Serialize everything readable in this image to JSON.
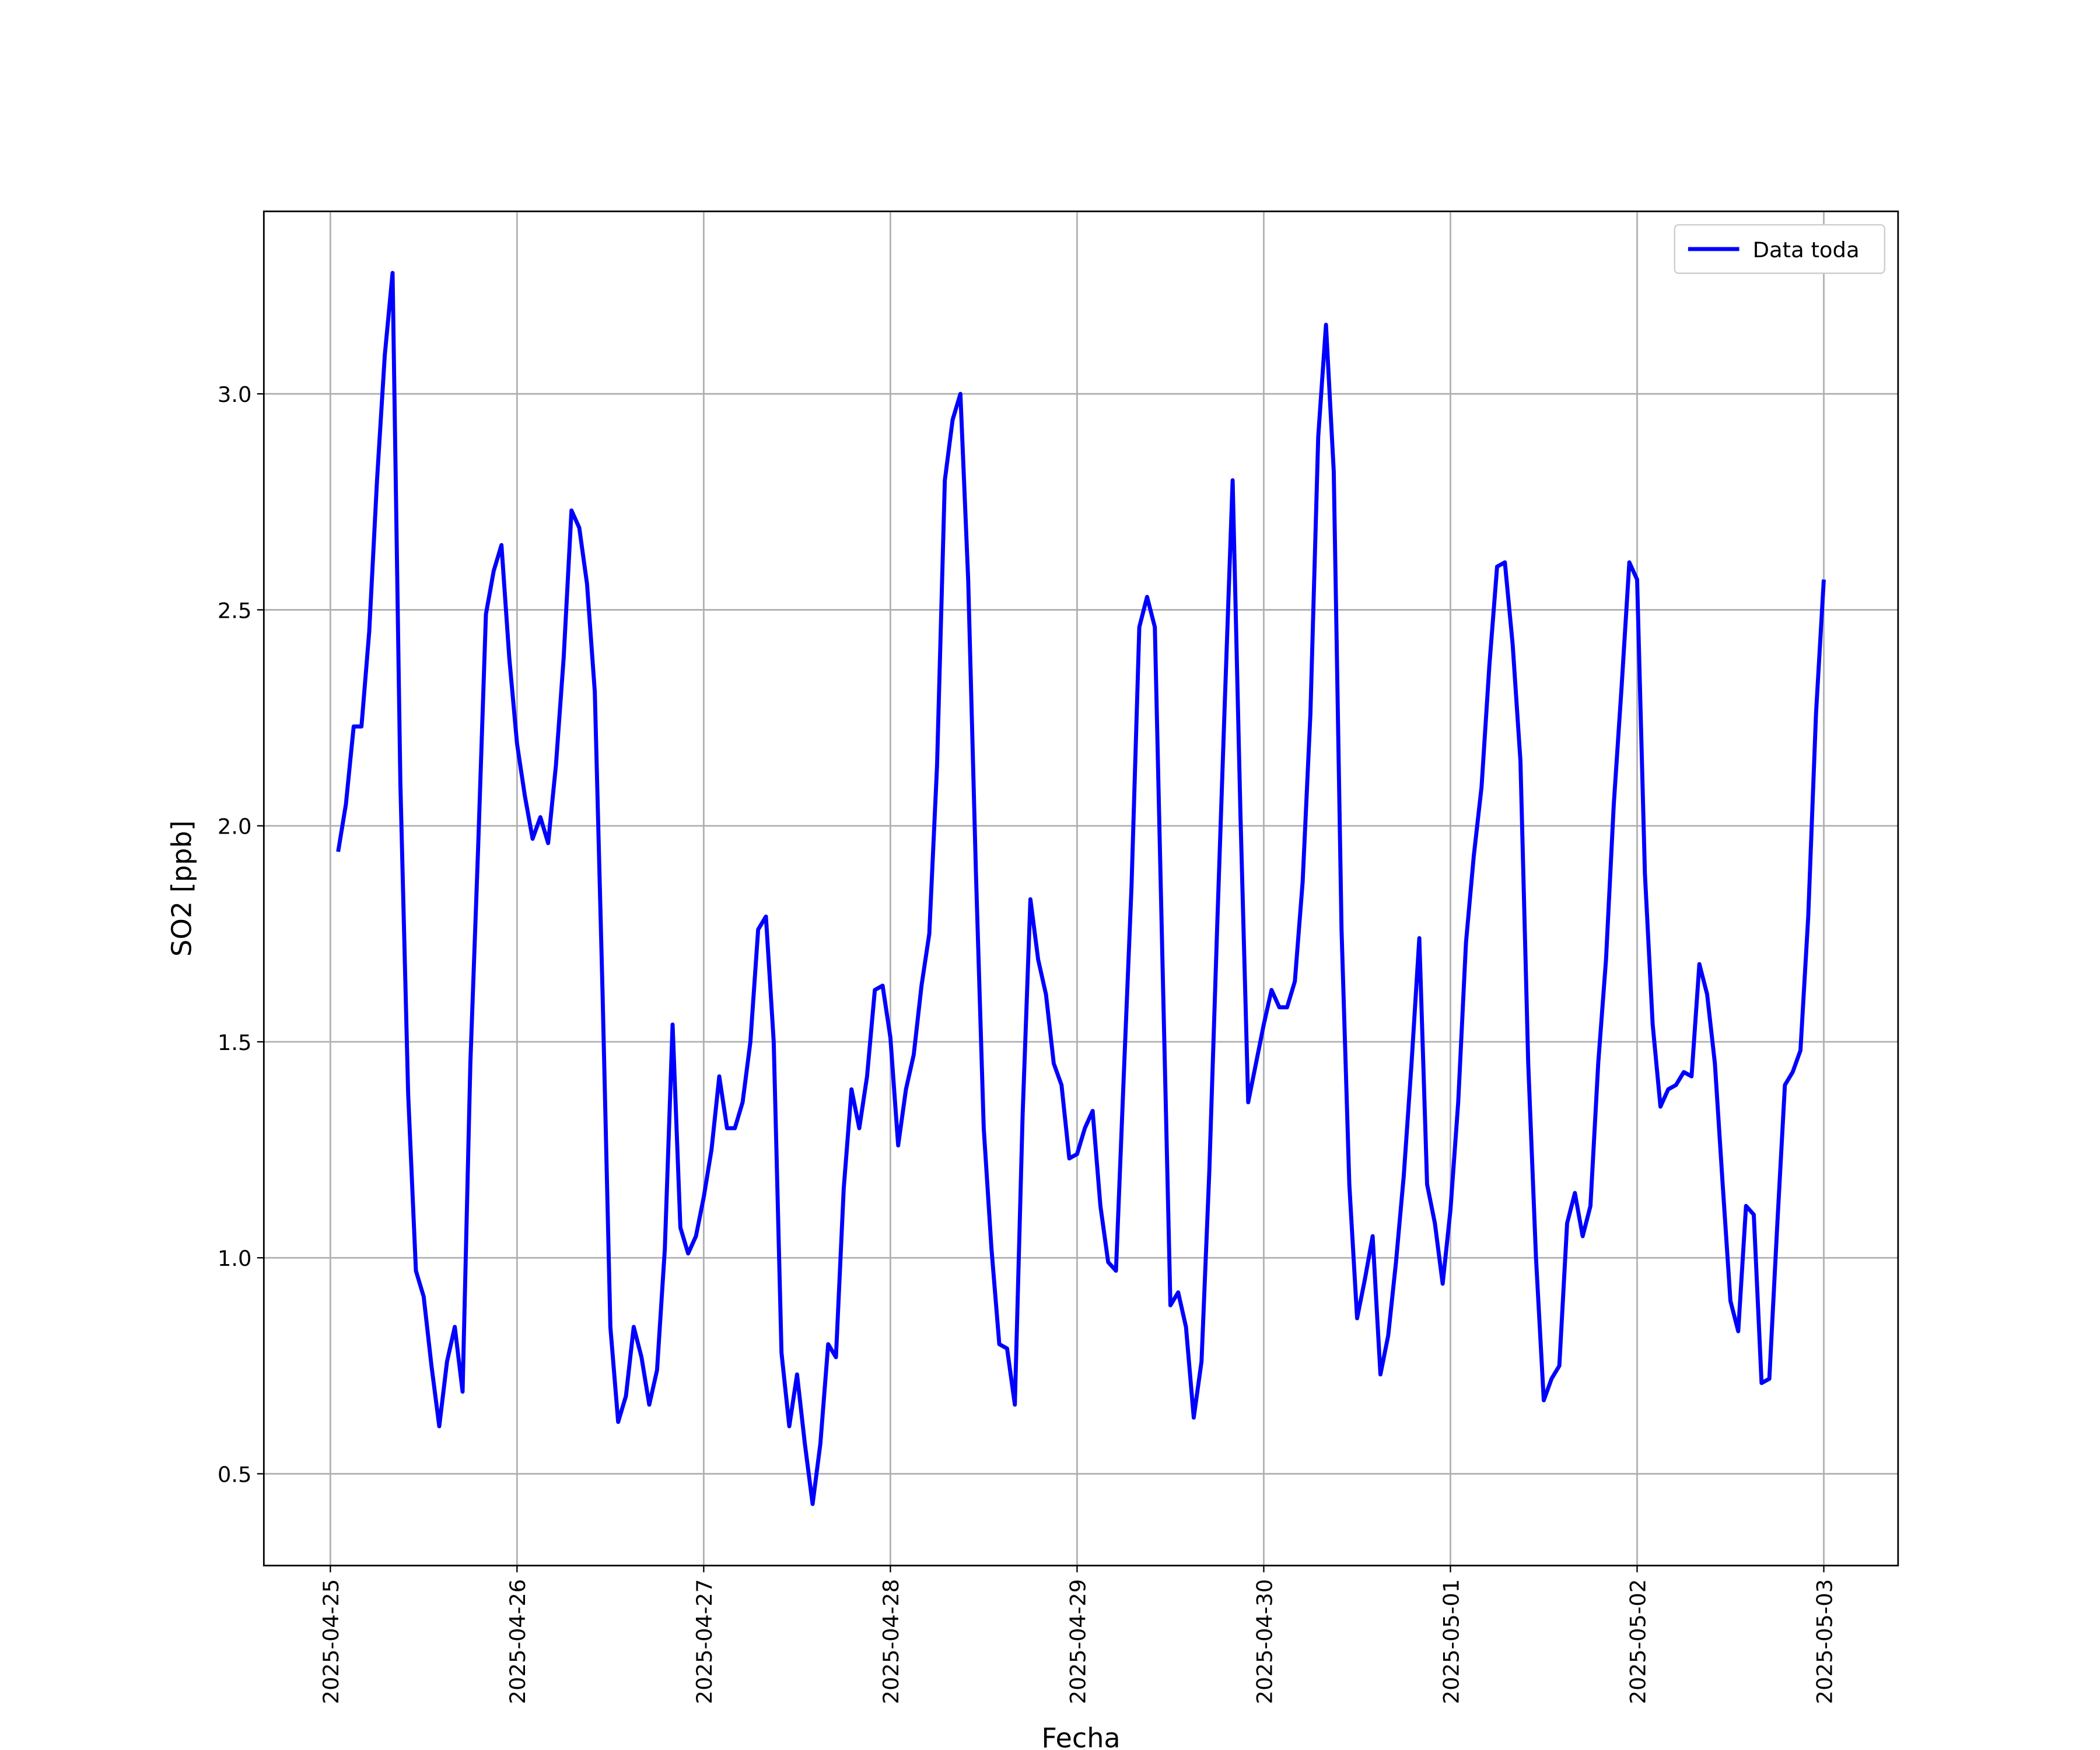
{
  "chart_data": {
    "type": "line",
    "xlabel": "Fecha",
    "ylabel": "SO2 [ppb]",
    "x": [
      "2025-04-25 01:00",
      "2025-04-25 02:00",
      "2025-04-25 03:00",
      "2025-04-25 04:00",
      "2025-04-25 05:00",
      "2025-04-25 06:00",
      "2025-04-25 07:00",
      "2025-04-25 08:00",
      "2025-04-25 09:00",
      "2025-04-25 10:00",
      "2025-04-25 11:00",
      "2025-04-25 12:00",
      "2025-04-25 13:00",
      "2025-04-25 14:00",
      "2025-04-25 15:00",
      "2025-04-25 16:00",
      "2025-04-25 17:00",
      "2025-04-25 18:00",
      "2025-04-25 19:00",
      "2025-04-25 20:00",
      "2025-04-25 21:00",
      "2025-04-25 22:00",
      "2025-04-25 23:00",
      "2025-04-26 00:00",
      "2025-04-26 01:00",
      "2025-04-26 02:00",
      "2025-04-26 03:00",
      "2025-04-26 04:00",
      "2025-04-26 05:00",
      "2025-04-26 06:00",
      "2025-04-26 07:00",
      "2025-04-26 08:00",
      "2025-04-26 09:00",
      "2025-04-26 10:00",
      "2025-04-26 11:00",
      "2025-04-26 12:00",
      "2025-04-26 13:00",
      "2025-04-26 14:00",
      "2025-04-26 15:00",
      "2025-04-26 16:00",
      "2025-04-26 17:00",
      "2025-04-26 18:00",
      "2025-04-26 19:00",
      "2025-04-26 20:00",
      "2025-04-26 21:00",
      "2025-04-26 22:00",
      "2025-04-26 23:00",
      "2025-04-27 00:00",
      "2025-04-27 01:00",
      "2025-04-27 02:00",
      "2025-04-27 03:00",
      "2025-04-27 04:00",
      "2025-04-27 05:00",
      "2025-04-27 06:00",
      "2025-04-27 07:00",
      "2025-04-27 08:00",
      "2025-04-27 09:00",
      "2025-04-27 10:00",
      "2025-04-27 11:00",
      "2025-04-27 12:00",
      "2025-04-27 13:00",
      "2025-04-27 14:00",
      "2025-04-27 15:00",
      "2025-04-27 16:00",
      "2025-04-27 17:00",
      "2025-04-27 18:00",
      "2025-04-27 19:00",
      "2025-04-27 20:00",
      "2025-04-27 21:00",
      "2025-04-27 22:00",
      "2025-04-27 23:00",
      "2025-04-28 00:00",
      "2025-04-28 01:00",
      "2025-04-28 02:00",
      "2025-04-28 03:00",
      "2025-04-28 04:00",
      "2025-04-28 05:00",
      "2025-04-28 06:00",
      "2025-04-28 07:00",
      "2025-04-28 08:00",
      "2025-04-28 09:00",
      "2025-04-28 10:00",
      "2025-04-28 11:00",
      "2025-04-28 12:00",
      "2025-04-28 13:00",
      "2025-04-28 14:00",
      "2025-04-28 15:00",
      "2025-04-28 16:00",
      "2025-04-28 17:00",
      "2025-04-28 18:00",
      "2025-04-28 19:00",
      "2025-04-28 20:00",
      "2025-04-28 21:00",
      "2025-04-28 22:00",
      "2025-04-28 23:00",
      "2025-04-29 00:00",
      "2025-04-29 01:00",
      "2025-04-29 02:00",
      "2025-04-29 03:00",
      "2025-04-29 04:00",
      "2025-04-29 05:00",
      "2025-04-29 06:00",
      "2025-04-29 07:00",
      "2025-04-29 08:00",
      "2025-04-29 09:00",
      "2025-04-29 10:00",
      "2025-04-29 11:00",
      "2025-04-29 12:00",
      "2025-04-29 13:00",
      "2025-04-29 14:00",
      "2025-04-29 15:00",
      "2025-04-29 16:00",
      "2025-04-29 17:00",
      "2025-04-29 18:00",
      "2025-04-29 19:00",
      "2025-04-29 20:00",
      "2025-04-29 21:00",
      "2025-04-29 22:00",
      "2025-04-29 23:00",
      "2025-04-30 00:00",
      "2025-04-30 01:00",
      "2025-04-30 02:00",
      "2025-04-30 03:00",
      "2025-04-30 04:00",
      "2025-04-30 05:00",
      "2025-04-30 06:00",
      "2025-04-30 07:00",
      "2025-04-30 08:00",
      "2025-04-30 09:00",
      "2025-04-30 10:00",
      "2025-04-30 11:00",
      "2025-04-30 12:00",
      "2025-04-30 13:00",
      "2025-04-30 14:00",
      "2025-04-30 15:00",
      "2025-04-30 16:00",
      "2025-04-30 17:00",
      "2025-04-30 18:00",
      "2025-04-30 19:00",
      "2025-04-30 20:00",
      "2025-04-30 21:00",
      "2025-04-30 22:00",
      "2025-04-30 23:00",
      "2025-05-01 00:00",
      "2025-05-01 01:00",
      "2025-05-01 02:00",
      "2025-05-01 03:00",
      "2025-05-01 04:00",
      "2025-05-01 05:00",
      "2025-05-01 06:00",
      "2025-05-01 07:00",
      "2025-05-01 08:00",
      "2025-05-01 09:00",
      "2025-05-01 10:00",
      "2025-05-01 11:00",
      "2025-05-01 12:00",
      "2025-05-01 13:00",
      "2025-05-01 14:00",
      "2025-05-01 15:00",
      "2025-05-01 16:00",
      "2025-05-01 17:00",
      "2025-05-01 18:00",
      "2025-05-01 19:00",
      "2025-05-01 20:00",
      "2025-05-01 21:00",
      "2025-05-01 22:00",
      "2025-05-01 23:00",
      "2025-05-02 00:00",
      "2025-05-02 01:00",
      "2025-05-02 02:00",
      "2025-05-02 03:00",
      "2025-05-02 04:00",
      "2025-05-02 05:00",
      "2025-05-02 06:00",
      "2025-05-02 07:00",
      "2025-05-02 08:00",
      "2025-05-02 09:00",
      "2025-05-02 10:00",
      "2025-05-02 11:00",
      "2025-05-02 12:00",
      "2025-05-02 13:00",
      "2025-05-02 14:00",
      "2025-05-02 15:00",
      "2025-05-02 16:00",
      "2025-05-02 17:00",
      "2025-05-02 18:00",
      "2025-05-02 19:00",
      "2025-05-02 20:00",
      "2025-05-02 21:00",
      "2025-05-02 22:00",
      "2025-05-02 23:00",
      "2025-05-03 00:00"
    ],
    "series": [
      {
        "name": "Data toda",
        "color": "#0000ff",
        "values": [
          1.94,
          2.05,
          2.23,
          2.23,
          2.45,
          2.8,
          3.09,
          3.28,
          2.1,
          1.38,
          0.97,
          0.91,
          0.75,
          0.61,
          0.76,
          0.84,
          0.69,
          1.45,
          1.95,
          2.49,
          2.59,
          2.65,
          2.39,
          2.19,
          2.07,
          1.97,
          2.02,
          1.96,
          2.14,
          2.39,
          2.73,
          2.69,
          2.56,
          2.31,
          1.61,
          0.84,
          0.62,
          0.68,
          0.84,
          0.77,
          0.66,
          0.74,
          1.02,
          1.54,
          1.07,
          1.01,
          1.05,
          1.14,
          1.25,
          1.42,
          1.3,
          1.3,
          1.36,
          1.5,
          1.76,
          1.79,
          1.5,
          0.78,
          0.61,
          0.73,
          0.57,
          0.43,
          0.57,
          0.8,
          0.77,
          1.16,
          1.39,
          1.3,
          1.42,
          1.62,
          1.63,
          1.51,
          1.26,
          1.39,
          1.47,
          1.63,
          1.75,
          2.14,
          2.8,
          2.94,
          3.0,
          2.57,
          1.89,
          1.3,
          1.02,
          0.8,
          0.79,
          0.66,
          1.33,
          1.83,
          1.69,
          1.61,
          1.45,
          1.4,
          1.23,
          1.24,
          1.3,
          1.34,
          1.12,
          0.99,
          0.97,
          1.42,
          1.86,
          2.46,
          2.53,
          2.46,
          1.67,
          0.89,
          0.92,
          0.84,
          0.63,
          0.76,
          1.2,
          1.76,
          2.29,
          2.8,
          2.03,
          1.36,
          1.45,
          1.54,
          1.62,
          1.58,
          1.58,
          1.64,
          1.87,
          2.26,
          2.9,
          3.16,
          2.82,
          1.76,
          1.17,
          0.86,
          0.95,
          1.05,
          0.73,
          0.82,
          0.99,
          1.19,
          1.45,
          1.74,
          1.17,
          1.08,
          0.94,
          1.11,
          1.36,
          1.73,
          1.93,
          2.09,
          2.37,
          2.6,
          2.61,
          2.42,
          2.15,
          1.45,
          1.0,
          0.67,
          0.72,
          0.75,
          1.08,
          1.15,
          1.05,
          1.12,
          1.45,
          1.69,
          2.05,
          2.32,
          2.61,
          2.57,
          1.89,
          1.54,
          1.35,
          1.39,
          1.4,
          1.43,
          1.42,
          1.68,
          1.61,
          1.45,
          1.17,
          0.9,
          0.83,
          1.12,
          1.1,
          0.71,
          0.72,
          1.07,
          1.4,
          1.43,
          1.48,
          1.79,
          2.26,
          2.57
        ]
      }
    ],
    "xlim": [
      "2025-04-24 15:27",
      "2025-05-03 09:33"
    ],
    "xticks": [
      "2025-04-25",
      "2025-04-26",
      "2025-04-27",
      "2025-04-28",
      "2025-04-29",
      "2025-04-30",
      "2025-05-01",
      "2025-05-02",
      "2025-05-03"
    ],
    "ylim": [
      0.2875,
      3.4225
    ],
    "yticks": [
      0.5,
      {
        "value": 1.0,
        "label": "1.0"
      },
      1.5,
      {
        "value": 2.0,
        "label": "2.0"
      },
      2.5,
      {
        "value": 3.0,
        "label": "3.0"
      }
    ],
    "grid": true,
    "legend": "upper right"
  }
}
